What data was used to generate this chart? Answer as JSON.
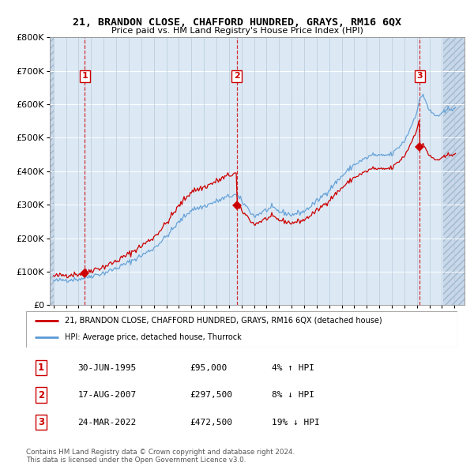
{
  "title": "21, BRANDON CLOSE, CHAFFORD HUNDRED, GRAYS, RM16 6QX",
  "subtitle": "Price paid vs. HM Land Registry's House Price Index (HPI)",
  "legend_line1": "21, BRANDON CLOSE, CHAFFORD HUNDRED, GRAYS, RM16 6QX (detached house)",
  "legend_line2": "HPI: Average price, detached house, Thurrock",
  "footer1": "Contains HM Land Registry data © Crown copyright and database right 2024.",
  "footer2": "This data is licensed under the Open Government Licence v3.0.",
  "transactions": [
    {
      "num": 1,
      "date": "30-JUN-1995",
      "price": "£95,000",
      "hpi": "4% ↑ HPI",
      "x_year": 1995.497
    },
    {
      "num": 2,
      "date": "17-AUG-2007",
      "price": "£297,500",
      "hpi": "8% ↓ HPI",
      "x_year": 2007.628
    },
    {
      "num": 3,
      "date": "24-MAR-2022",
      "price": "£472,500",
      "hpi": "19% ↓ HPI",
      "x_year": 2022.228
    }
  ],
  "transaction_prices": [
    95000,
    297500,
    472500
  ],
  "hpi_color": "#5b9bd5",
  "price_color": "#cc0000",
  "plot_bg_color": "#dce9f5",
  "hatch_bg_color": "#c8d8e8",
  "ylim": [
    0,
    800000
  ],
  "xlim_start": 1992.7,
  "xlim_end": 2025.8,
  "data_start": 1993.0,
  "data_end": 2025.0,
  "yticks": [
    0,
    100000,
    200000,
    300000,
    400000,
    500000,
    600000,
    700000,
    800000
  ],
  "xtick_years": [
    1993,
    1994,
    1995,
    1996,
    1997,
    1998,
    1999,
    2000,
    2001,
    2002,
    2003,
    2004,
    2005,
    2006,
    2007,
    2008,
    2009,
    2010,
    2011,
    2012,
    2013,
    2014,
    2015,
    2016,
    2017,
    2018,
    2019,
    2020,
    2021,
    2022,
    2023,
    2024,
    2025
  ]
}
